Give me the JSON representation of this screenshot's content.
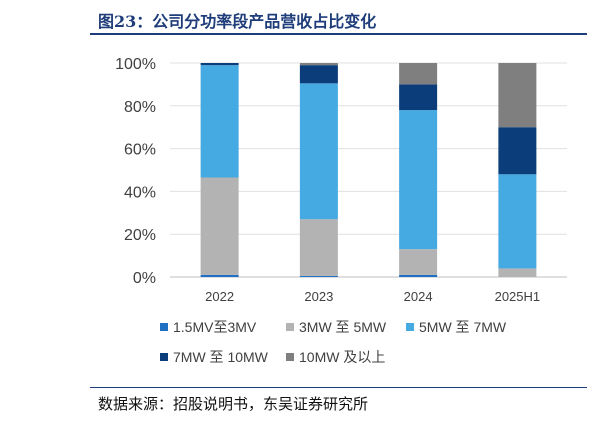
{
  "figure": {
    "title": "图23：公司分功率段产品营收占比变化",
    "source": "数据来源：招股说明书，东吴证券研究所"
  },
  "chart_data": {
    "type": "bar",
    "stacked": true,
    "title": "公司分功率段产品营收占比变化",
    "categories": [
      "2022",
      "2023",
      "2024",
      "2025H1"
    ],
    "ylim": [
      0,
      100
    ],
    "yticks": [
      0,
      20,
      40,
      60,
      80,
      100
    ],
    "ytick_labels": [
      "0%",
      "20%",
      "40%",
      "60%",
      "80%",
      "100%"
    ],
    "legend_position": "bottom",
    "series": [
      {
        "name": "1.5MV至3MV",
        "color": "#1f6fc5",
        "values": [
          1,
          0.5,
          1,
          0
        ]
      },
      {
        "name": "3MW 至 5MW",
        "color": "#b3b3b3",
        "values": [
          45.5,
          26.5,
          12,
          4
        ]
      },
      {
        "name": "5MW 至 7MW",
        "color": "#45a9e2",
        "values": [
          52.5,
          63.5,
          65,
          44
        ]
      },
      {
        "name": "7MW 至 10MW",
        "color": "#0a3d7a",
        "values": [
          1,
          8.5,
          12,
          22
        ]
      },
      {
        "name": "10MW 及以上",
        "color": "#7f7f7f",
        "values": [
          0,
          1,
          10,
          30
        ]
      }
    ]
  }
}
